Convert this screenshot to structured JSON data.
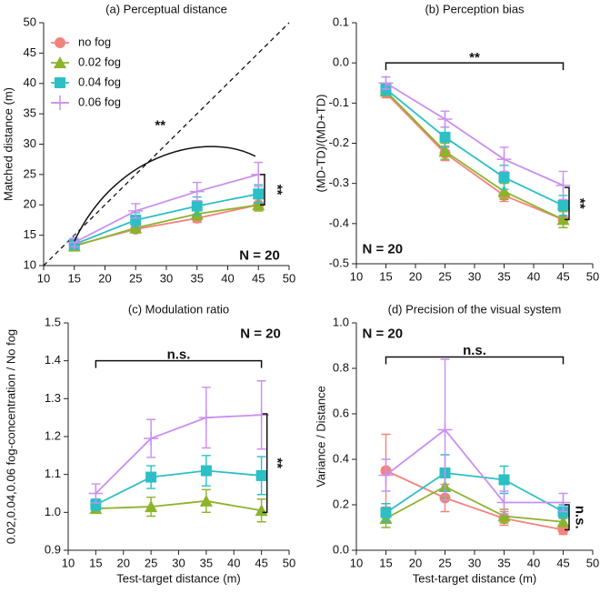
{
  "chart_data": [
    {
      "type": "line",
      "title": "(a) Perceptual distance",
      "y_label": "Matched distance (m)",
      "x": [
        15,
        25,
        35,
        45
      ],
      "xlim": [
        10,
        50
      ],
      "xticks": [
        10,
        15,
        20,
        25,
        30,
        35,
        40,
        45,
        50
      ],
      "ylim": [
        10,
        50
      ],
      "yticks": [
        10,
        15,
        20,
        25,
        30,
        35,
        40,
        45,
        50
      ],
      "legend": "upper left",
      "diagonal": true,
      "series": [
        {
          "name": "no fog",
          "color": "#f4837d",
          "marker": "circle",
          "values": [
            13.3,
            16.0,
            17.8,
            20.0
          ],
          "errors": [
            0.5,
            0.6,
            0.7,
            1.0
          ]
        },
        {
          "name": "0.02 fog",
          "color": "#8db32b",
          "marker": "triangle",
          "values": [
            13.2,
            16.2,
            18.5,
            20.0
          ],
          "errors": [
            0.5,
            0.8,
            1.0,
            1.0
          ]
        },
        {
          "name": "0.04 fog",
          "color": "#2cbfc6",
          "marker": "square",
          "values": [
            13.5,
            17.5,
            19.8,
            21.8
          ],
          "errors": [
            0.6,
            1.2,
            1.5,
            1.5
          ]
        },
        {
          "name": "0.06 fog",
          "color": "#c98ff0",
          "marker": "plus",
          "values": [
            13.8,
            19.0,
            22.2,
            25.0
          ],
          "errors": [
            0.7,
            1.2,
            1.5,
            2.0
          ]
        }
      ],
      "annotations": [
        "**",
        "**",
        "N = 20"
      ]
    },
    {
      "type": "line",
      "title": "(b) Perception bias",
      "y_label": "(MD-TD)/(MD+TD)",
      "x": [
        15,
        25,
        35,
        45
      ],
      "xlim": [
        10,
        50
      ],
      "xticks": [
        10,
        15,
        20,
        25,
        30,
        35,
        40,
        45,
        50
      ],
      "ylim": [
        -0.5,
        0.1
      ],
      "yticks": [
        -0.5,
        -0.4,
        -0.3,
        -0.2,
        -0.1,
        {
          "value": 0,
          "label": "0.0"
        },
        0.1
      ],
      "series": [
        {
          "name": "no fog",
          "color": "#f4837d",
          "marker": "circle",
          "values": [
            -0.075,
            -0.225,
            -0.33,
            -0.39
          ],
          "errors": [
            0.012,
            0.018,
            0.015,
            0.02
          ]
        },
        {
          "name": "0.02 fog",
          "color": "#8db32b",
          "marker": "triangle",
          "values": [
            -0.07,
            -0.22,
            -0.32,
            -0.39
          ],
          "errors": [
            0.012,
            0.02,
            0.02,
            0.02
          ]
        },
        {
          "name": "0.04 fog",
          "color": "#2cbfc6",
          "marker": "square",
          "values": [
            -0.065,
            -0.185,
            -0.285,
            -0.355
          ],
          "errors": [
            0.015,
            0.025,
            0.03,
            0.025
          ]
        },
        {
          "name": "0.06 fog",
          "color": "#c98ff0",
          "marker": "plus",
          "values": [
            -0.05,
            -0.14,
            -0.24,
            -0.305
          ],
          "errors": [
            0.015,
            0.02,
            0.03,
            0.035
          ]
        }
      ],
      "annotations": [
        "**",
        "**",
        "N = 20"
      ]
    },
    {
      "type": "line",
      "title": "(c) Modulation ratio",
      "y_label": "0.02,0.04,0.06 fog-concentration / No fog",
      "x_label": "Test-target distance (m)",
      "x": [
        15,
        25,
        35,
        45
      ],
      "xlim": [
        10,
        50
      ],
      "xticks": [
        10,
        15,
        20,
        25,
        30,
        35,
        40,
        45,
        50
      ],
      "ylim": [
        0.9,
        1.5
      ],
      "yticks": [
        0.9,
        {
          "value": 1,
          "label": "1.0"
        },
        1.1,
        1.2,
        1.3,
        1.4,
        1.5
      ],
      "series": [
        {
          "name": "0.02 fog",
          "color": "#8db32b",
          "marker": "triangle",
          "values": [
            1.01,
            1.015,
            1.03,
            1.005
          ],
          "errors": [
            0.01,
            0.025,
            0.03,
            0.03
          ]
        },
        {
          "name": "0.04 fog",
          "color": "#2cbfc6",
          "marker": "square",
          "values": [
            1.02,
            1.093,
            1.11,
            1.097
          ],
          "errors": [
            0.015,
            0.03,
            0.04,
            0.05
          ]
        },
        {
          "name": "0.06 fog",
          "color": "#c98ff0",
          "marker": "plus",
          "values": [
            1.05,
            1.195,
            1.25,
            1.257
          ],
          "errors": [
            0.025,
            0.05,
            0.08,
            0.09
          ]
        }
      ],
      "annotations": [
        "n.s.",
        "**",
        "N = 20"
      ]
    },
    {
      "type": "line",
      "title": "(d) Precision of the visual system",
      "y_label": "Variance / Distance",
      "x_label": "Test-target distance (m)",
      "x": [
        15,
        25,
        35,
        45
      ],
      "xlim": [
        10,
        50
      ],
      "xticks": [
        10,
        15,
        20,
        25,
        30,
        35,
        40,
        45,
        50
      ],
      "ylim": [
        0,
        1
      ],
      "yticks": [
        {
          "value": 0,
          "label": "0.0"
        },
        0.2,
        0.4,
        0.6,
        0.8,
        {
          "value": 1,
          "label": "1.0"
        }
      ],
      "series": [
        {
          "name": "no fog",
          "color": "#f4837d",
          "marker": "circle",
          "values": [
            0.35,
            0.23,
            0.14,
            0.09
          ],
          "errors": [
            0.16,
            0.06,
            0.03,
            0.02
          ]
        },
        {
          "name": "0.02 fog",
          "color": "#8db32b",
          "marker": "triangle",
          "values": [
            0.14,
            0.28,
            0.15,
            0.125
          ],
          "errors": [
            0.04,
            0.05,
            0.03,
            0.02
          ]
        },
        {
          "name": "0.04 fog",
          "color": "#2cbfc6",
          "marker": "square",
          "values": [
            0.165,
            0.34,
            0.31,
            0.17
          ],
          "errors": [
            0.04,
            0.08,
            0.06,
            0.03
          ]
        },
        {
          "name": "0.06 fog",
          "color": "#c98ff0",
          "marker": "plus",
          "values": [
            0.33,
            0.53,
            0.21,
            0.21
          ],
          "errors": [
            0.07,
            0.31,
            0.05,
            0.04
          ]
        }
      ],
      "annotations": [
        "N = 20",
        "n.s.",
        "n.s."
      ]
    }
  ]
}
